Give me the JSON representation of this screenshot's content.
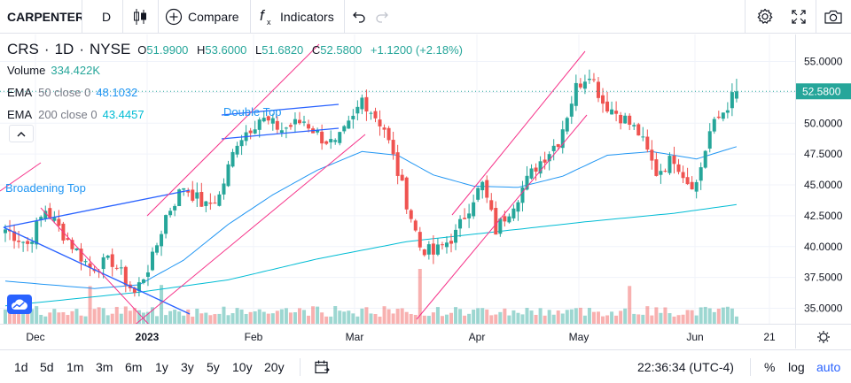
{
  "toolbar": {
    "symbol": "CARPENTER",
    "interval": "D",
    "chart_type_icon": "candles-icon",
    "compare_label": "Compare",
    "indicators_label": "Indicators",
    "undo_icon": "undo-icon",
    "redo_icon": "redo-icon",
    "settings_icon": "gear-icon",
    "fullscreen_icon": "fullscreen-icon",
    "snapshot_icon": "camera-icon"
  },
  "legend": {
    "ticker": "CRS",
    "interval": "1D",
    "exchange": "NYSE",
    "open_label": "O",
    "open": "51.9900",
    "high_label": "H",
    "high": "53.6000",
    "low_label": "L",
    "low": "51.6820",
    "close_label": "C",
    "close": "52.5800",
    "change": "+1.1200 (+2.18%)",
    "volume_label": "Volume",
    "volume": "334.422K",
    "ema50_label": "EMA",
    "ema50_params": "50 close 0",
    "ema50_value": "48.1032",
    "ema200_label": "EMA",
    "ema200_params": "200 close 0",
    "ema200_value": "43.4457"
  },
  "annotations": {
    "double_top": "Double Top",
    "broadening_top": "Broadening Top"
  },
  "price_scale": {
    "ticks": [
      "55.0000",
      "52.5000",
      "50.0000",
      "47.5000",
      "45.0000",
      "42.5000",
      "40.0000",
      "37.5000",
      "35.0000"
    ],
    "last_price": "52.5800"
  },
  "time_scale": {
    "ticks": [
      "Dec",
      "2023",
      "Feb",
      "Mar",
      "Apr",
      "May",
      "Jun",
      "21"
    ]
  },
  "bottom_bar": {
    "ranges": [
      "1d",
      "5d",
      "1m",
      "3m",
      "6m",
      "1y",
      "3y",
      "5y",
      "10y",
      "20y"
    ],
    "clock": "22:36:34 (UTC-4)",
    "percent_label": "%",
    "log_label": "log",
    "auto_label": "auto"
  },
  "colors": {
    "up": "#26a69a",
    "down": "#ef5350",
    "ema50": "#2196f3",
    "ema200": "#00bcd4",
    "pattern": "#f6348a",
    "accent": "#2962ff"
  },
  "chart_data": {
    "type": "candlestick",
    "symbol": "CRS",
    "interval": "1D",
    "ylim": [
      34.0,
      57.0
    ],
    "y_ticks": [
      35.0,
      37.5,
      40.0,
      42.5,
      45.0,
      47.5,
      50.0,
      52.5,
      55.0
    ],
    "x_labels": [
      "Dec",
      "2023",
      "Feb",
      "Mar",
      "Apr",
      "May",
      "Jun",
      "21"
    ],
    "last": {
      "open": 51.99,
      "high": 53.6,
      "low": 51.682,
      "close": 52.58,
      "change": 1.12,
      "change_pct": 2.18
    },
    "anchors": [
      {
        "t": 0,
        "v": 41.4
      },
      {
        "t": 5,
        "v": 40.2
      },
      {
        "t": 9,
        "v": 43.0
      },
      {
        "t": 13,
        "v": 41.0
      },
      {
        "t": 19,
        "v": 38.3
      },
      {
        "t": 24,
        "v": 38.8
      },
      {
        "t": 29,
        "v": 36.2
      },
      {
        "t": 33,
        "v": 39.0
      },
      {
        "t": 36,
        "v": 42.5
      },
      {
        "t": 40,
        "v": 44.9
      },
      {
        "t": 45,
        "v": 43.2
      },
      {
        "t": 48,
        "v": 44.1
      },
      {
        "t": 52,
        "v": 48.6
      },
      {
        "t": 57,
        "v": 50.4
      },
      {
        "t": 62,
        "v": 49.5
      },
      {
        "t": 67,
        "v": 50.2
      },
      {
        "t": 71,
        "v": 48.8
      },
      {
        "t": 74,
        "v": 48.2
      },
      {
        "t": 78,
        "v": 50.3
      },
      {
        "t": 80,
        "v": 52.0
      },
      {
        "t": 85,
        "v": 49.6
      },
      {
        "t": 89,
        "v": 44.8
      },
      {
        "t": 93,
        "v": 40.0
      },
      {
        "t": 96,
        "v": 39.4
      },
      {
        "t": 101,
        "v": 41.0
      },
      {
        "t": 105,
        "v": 44.0
      },
      {
        "t": 107,
        "v": 45.0
      },
      {
        "t": 110,
        "v": 41.3
      },
      {
        "t": 113,
        "v": 43.0
      },
      {
        "t": 119,
        "v": 46.5
      },
      {
        "t": 124,
        "v": 48.6
      },
      {
        "t": 128,
        "v": 52.9
      },
      {
        "t": 131,
        "v": 54.2
      },
      {
        "t": 134,
        "v": 51.7
      },
      {
        "t": 139,
        "v": 50.3
      },
      {
        "t": 142,
        "v": 49.2
      },
      {
        "t": 146,
        "v": 46.0
      },
      {
        "t": 150,
        "v": 47.2
      },
      {
        "t": 153,
        "v": 45.3
      },
      {
        "t": 155,
        "v": 45.1
      },
      {
        "t": 158,
        "v": 49.3
      },
      {
        "t": 162,
        "v": 51.5
      },
      {
        "t": 164,
        "v": 52.58
      }
    ],
    "ema50": [
      {
        "t": 0,
        "v": 37.2
      },
      {
        "t": 20,
        "v": 36.6
      },
      {
        "t": 30,
        "v": 36.9
      },
      {
        "t": 40,
        "v": 38.9
      },
      {
        "t": 50,
        "v": 41.8
      },
      {
        "t": 60,
        "v": 44.2
      },
      {
        "t": 70,
        "v": 46.2
      },
      {
        "t": 80,
        "v": 47.7
      },
      {
        "t": 88,
        "v": 47.4
      },
      {
        "t": 96,
        "v": 45.8
      },
      {
        "t": 105,
        "v": 44.9
      },
      {
        "t": 115,
        "v": 44.8
      },
      {
        "t": 125,
        "v": 45.7
      },
      {
        "t": 135,
        "v": 47.4
      },
      {
        "t": 145,
        "v": 47.7
      },
      {
        "t": 155,
        "v": 47.1
      },
      {
        "t": 164,
        "v": 48.1
      }
    ],
    "ema200": [
      {
        "t": 0,
        "v": 35.2
      },
      {
        "t": 30,
        "v": 36.3
      },
      {
        "t": 50,
        "v": 37.3
      },
      {
        "t": 70,
        "v": 39.0
      },
      {
        "t": 90,
        "v": 40.4
      },
      {
        "t": 110,
        "v": 41.2
      },
      {
        "t": 130,
        "v": 42.0
      },
      {
        "t": 150,
        "v": 42.7
      },
      {
        "t": 164,
        "v": 43.4
      }
    ],
    "volume_high_days": [
      19,
      35,
      93,
      140
    ],
    "series_count": 165
  }
}
